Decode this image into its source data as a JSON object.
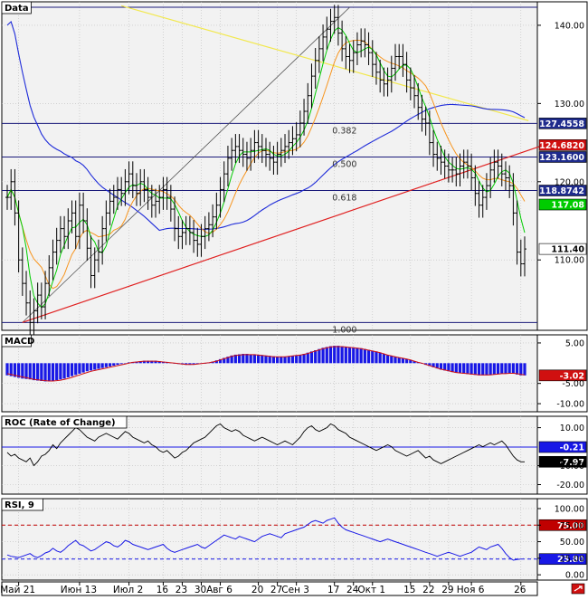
{
  "colors": {
    "panel_bg": "#f2f2f2",
    "grid": "#bdbdbd",
    "candle": "#000000",
    "sma_green": "#00cc00",
    "sma_orange": "#f7941d",
    "sma_blue": "#1e2bd9",
    "sma_yellow": "#f2e84e",
    "trend_red": "#e02020",
    "fib_line": "#1a1a7a",
    "macd_hist": "#1818e6",
    "macd_signal": "#d01010",
    "roc_line": "#000000",
    "rsi_line": "#1818e6",
    "rsi_overbought": "#c00000"
  },
  "toolbar": {
    "resize_icon": "resize-icon"
  },
  "x_axis": {
    "labels": [
      {
        "text": "Май 21",
        "i": 3
      },
      {
        "text": "Июн 13",
        "i": 19
      },
      {
        "text": "Июл 2",
        "i": 32
      },
      {
        "text": "16",
        "i": 41
      },
      {
        "text": "23",
        "i": 46
      },
      {
        "text": "30",
        "i": 51
      },
      {
        "text": "Авг 6",
        "i": 56
      },
      {
        "text": "20",
        "i": 66
      },
      {
        "text": "27",
        "i": 71
      },
      {
        "text": "Сен 3",
        "i": 76
      },
      {
        "text": "17",
        "i": 86
      },
      {
        "text": "24",
        "i": 91
      },
      {
        "text": "Окт 1",
        "i": 96
      },
      {
        "text": "15",
        "i": 106
      },
      {
        "text": "22",
        "i": 111
      },
      {
        "text": "29",
        "i": 116
      },
      {
        "text": "Ноя 6",
        "i": 122
      },
      {
        "text": "26",
        "i": 135
      }
    ]
  },
  "chart_data": [
    {
      "type": "line",
      "title": "Data",
      "ylim": [
        101,
        143
      ],
      "y_ticks": [
        "140.00",
        "130.00",
        "120.00",
        "110.00"
      ],
      "y_tick_values": [
        140,
        130,
        120,
        110
      ],
      "series_style": "ohlc",
      "closes": [
        118.0,
        120.0,
        116.0,
        110.0,
        107.0,
        104.5,
        102.0,
        103.5,
        105.5,
        104.0,
        107.0,
        109.0,
        111.0,
        112.5,
        114.0,
        113.0,
        115.0,
        116.0,
        113.0,
        117.0,
        115.0,
        111.5,
        108.0,
        110.0,
        111.0,
        114.0,
        116.0,
        117.5,
        118.0,
        119.0,
        118.5,
        120.0,
        121.0,
        119.5,
        118.5,
        120.0,
        119.0,
        118.0,
        117.0,
        117.5,
        118.0,
        119.0,
        118.0,
        116.5,
        114.0,
        113.0,
        113.5,
        114.0,
        113.5,
        112.5,
        112.0,
        113.0,
        114.0,
        114.5,
        115.5,
        117.0,
        119.0,
        121.0,
        123.0,
        124.0,
        124.5,
        124.0,
        123.5,
        123.0,
        124.0,
        125.0,
        124.5,
        124.0,
        123.5,
        123.0,
        122.5,
        123.5,
        124.0,
        124.5,
        125.0,
        125.5,
        126.0,
        127.5,
        129.0,
        131.0,
        133.5,
        135.5,
        137.0,
        138.5,
        139.5,
        140.5,
        141.0,
        139.0,
        137.0,
        136.0,
        135.5,
        136.5,
        137.5,
        138.0,
        137.5,
        136.5,
        135.0,
        134.0,
        133.0,
        132.5,
        133.0,
        134.5,
        136.0,
        136.0,
        135.0,
        133.0,
        132.0,
        131.0,
        129.5,
        128.0,
        127.5,
        125.0,
        123.5,
        123.0,
        122.5,
        122.0,
        121.5,
        121.5,
        121.0,
        122.0,
        122.5,
        122.0,
        120.5,
        118.5,
        117.0,
        118.0,
        119.5,
        121.5,
        122.5,
        122.0,
        121.0,
        120.5,
        119.5,
        116.0,
        111.0,
        109.5,
        111.4
      ],
      "value_labels": [
        {
          "text": "127.4558",
          "value": 127.4558,
          "bg": "#1e2b8c",
          "fg": "#ffffff"
        },
        {
          "text": "124.6820",
          "value": 124.682,
          "bg": "#d01010",
          "fg": "#ffffff"
        },
        {
          "text": "123.1600",
          "value": 123.16,
          "bg": "#1e2b8c",
          "fg": "#ffffff"
        },
        {
          "text": "118.8742",
          "value": 118.8742,
          "bg": "#1e2b8c",
          "fg": "#ffffff"
        },
        {
          "text": "117.08",
          "value": 117.08,
          "bg": "#00cc00",
          "fg": "#ffffff"
        },
        {
          "text": "111.40",
          "value": 111.4,
          "bg": "#ffffff",
          "fg": "#000000"
        }
      ],
      "fib_levels": [
        {
          "label": "",
          "value": 142.3
        },
        {
          "label": "0.382",
          "value": 127.4558
        },
        {
          "label": "0.500",
          "value": 123.16
        },
        {
          "label": "0.618",
          "value": 118.8742
        },
        {
          "label": "1.000",
          "value": 102.0
        }
      ],
      "fib_tail_start_i": 84,
      "fib_diagonal": {
        "from": [
          4,
          102.0
        ],
        "to": [
          90,
          142.3
        ]
      },
      "trendline": {
        "from": [
          4,
          102.0
        ],
        "to": [
          141,
          124.682
        ]
      },
      "yellow_line": {
        "from": [
          30,
          142.5
        ],
        "to": [
          137,
          127.8
        ]
      }
    },
    {
      "type": "bar",
      "title": "MACD",
      "ylim": [
        -12,
        7
      ],
      "y_ticks": [
        "5.00",
        "-5.00",
        "-10.00"
      ],
      "y_tick_values": [
        5,
        -5,
        -10
      ],
      "value_labels": [
        {
          "text": "-3.02",
          "value": -3.02,
          "bg": "#d01010",
          "fg": "#ffffff"
        }
      ],
      "histogram": [
        -3.0,
        -3.2,
        -3.4,
        -3.6,
        -3.8,
        -3.9,
        -4.0,
        -4.2,
        -4.3,
        -4.4,
        -4.5,
        -4.5,
        -4.4,
        -4.2,
        -4.0,
        -3.8,
        -3.5,
        -3.2,
        -2.9,
        -2.6,
        -2.3,
        -2.0,
        -1.8,
        -1.6,
        -1.4,
        -1.2,
        -1.0,
        -0.8,
        -0.6,
        -0.4,
        -0.2,
        0.0,
        0.2,
        0.3,
        0.4,
        0.5,
        0.6,
        0.6,
        0.6,
        0.6,
        0.5,
        0.4,
        0.3,
        0.1,
        -0.1,
        -0.2,
        -0.3,
        -0.4,
        -0.4,
        -0.3,
        -0.2,
        -0.1,
        0.0,
        0.2,
        0.4,
        0.7,
        1.0,
        1.3,
        1.6,
        1.9,
        2.1,
        2.2,
        2.3,
        2.3,
        2.2,
        2.2,
        2.1,
        2.0,
        1.9,
        1.8,
        1.7,
        1.6,
        1.6,
        1.6,
        1.7,
        1.8,
        1.9,
        2.1,
        2.3,
        2.6,
        2.9,
        3.2,
        3.5,
        3.8,
        4.0,
        4.2,
        4.3,
        4.3,
        4.2,
        4.1,
        4.0,
        3.9,
        3.8,
        3.7,
        3.5,
        3.3,
        3.1,
        2.9,
        2.6,
        2.3,
        2.0,
        1.8,
        1.6,
        1.4,
        1.2,
        1.0,
        0.8,
        0.5,
        0.2,
        -0.1,
        -0.4,
        -0.7,
        -1.0,
        -1.3,
        -1.6,
        -1.8,
        -2.0,
        -2.2,
        -2.4,
        -2.5,
        -2.6,
        -2.7,
        -2.8,
        -2.9,
        -3.0,
        -3.0,
        -3.0,
        -2.9,
        -2.8,
        -2.7,
        -2.6,
        -2.6,
        -2.5,
        -2.6,
        -2.8,
        -3.0,
        -3.02
      ],
      "signal": [
        -2.6,
        -2.8,
        -3.0,
        -3.2,
        -3.4,
        -3.6,
        -3.8,
        -4.0,
        -4.1,
        -4.2,
        -4.3,
        -4.4,
        -4.4,
        -4.3,
        -4.2,
        -4.0,
        -3.8,
        -3.5,
        -3.2,
        -2.9,
        -2.6,
        -2.3,
        -2.0,
        -1.8,
        -1.6,
        -1.4,
        -1.2,
        -1.0,
        -0.8,
        -0.6,
        -0.4,
        -0.2,
        0.0,
        0.2,
        0.3,
        0.4,
        0.5,
        0.5,
        0.5,
        0.5,
        0.4,
        0.3,
        0.2,
        0.1,
        0.0,
        -0.1,
        -0.2,
        -0.3,
        -0.3,
        -0.3,
        -0.2,
        -0.1,
        0.0,
        0.1,
        0.3,
        0.5,
        0.8,
        1.1,
        1.4,
        1.7,
        1.9,
        2.0,
        2.1,
        2.1,
        2.1,
        2.1,
        2.0,
        1.9,
        1.8,
        1.7,
        1.6,
        1.6,
        1.6,
        1.6,
        1.7,
        1.8,
        1.9,
        2.0,
        2.2,
        2.4,
        2.7,
        3.0,
        3.3,
        3.6,
        3.8,
        4.0,
        4.1,
        4.1,
        4.1,
        4.0,
        3.9,
        3.8,
        3.7,
        3.6,
        3.4,
        3.2,
        3.0,
        2.8,
        2.6,
        2.3,
        2.0,
        1.8,
        1.6,
        1.4,
        1.2,
        1.0,
        0.8,
        0.5,
        0.2,
        0.0,
        -0.3,
        -0.6,
        -0.9,
        -1.2,
        -1.5,
        -1.7,
        -1.9,
        -2.1,
        -2.3,
        -2.4,
        -2.5,
        -2.6,
        -2.7,
        -2.8,
        -2.9,
        -2.9,
        -2.9,
        -2.9,
        -2.8,
        -2.7,
        -2.6,
        -2.6,
        -2.5,
        -2.5,
        -2.6,
        -2.8,
        -2.9
      ]
    },
    {
      "type": "line",
      "title": "ROC (Rate of Change)",
      "ylim": [
        -25,
        16
      ],
      "y_ticks": [
        "10.00",
        "-10.00",
        "-20.00"
      ],
      "y_tick_values": [
        10,
        -10,
        -20
      ],
      "value_labels": [
        {
          "text": "-0.21",
          "value": -0.21,
          "bg": "#1818e6",
          "fg": "#ffffff"
        },
        {
          "text": "-7.97",
          "value": -7.97,
          "bg": "#000000",
          "fg": "#ffffff"
        }
      ],
      "level_line": -0.21,
      "values": [
        -3,
        -5,
        -4,
        -6,
        -7,
        -8,
        -6,
        -10,
        -8,
        -5,
        -4,
        -2,
        1,
        -1,
        2,
        4,
        6,
        8,
        10,
        9,
        7,
        5,
        4,
        3,
        5,
        6,
        7,
        6,
        5,
        4,
        6,
        8,
        7,
        5,
        4,
        3,
        2,
        3,
        1,
        0,
        -2,
        -3,
        -2,
        -4,
        -6,
        -5,
        -3,
        -2,
        0,
        2,
        3,
        4,
        5,
        7,
        9,
        11,
        12,
        10,
        9,
        8,
        9,
        8,
        6,
        5,
        4,
        3,
        4,
        5,
        4,
        3,
        2,
        1,
        2,
        3,
        2,
        1,
        3,
        5,
        8,
        10,
        11,
        9,
        8,
        9,
        10,
        12,
        11,
        9,
        8,
        7,
        5,
        4,
        3,
        2,
        1,
        0,
        -1,
        -2,
        -1,
        0,
        1,
        0,
        -2,
        -3,
        -4,
        -5,
        -4,
        -3,
        -2,
        -4,
        -6,
        -5,
        -7,
        -8,
        -9,
        -8,
        -7,
        -6,
        -5,
        -4,
        -3,
        -2,
        -1,
        0,
        1,
        0,
        1,
        2,
        1,
        2,
        3,
        1,
        -2,
        -5,
        -7,
        -8,
        -7.97
      ]
    },
    {
      "type": "line",
      "title": "RSI, 9",
      "ylim": [
        -8,
        115
      ],
      "y_ticks": [
        "100.00",
        "75.00",
        "50.00",
        "25.00",
        "0.00"
      ],
      "y_tick_values": [
        100,
        75,
        50,
        25,
        0
      ],
      "value_labels": [
        {
          "text": "75.00",
          "value": 75,
          "bg": "#c00000",
          "fg": "#ffffff"
        },
        {
          "text": "23.80",
          "value": 23.8,
          "bg": "#1818e6",
          "fg": "#ffffff"
        }
      ],
      "overbought": 75,
      "oversold": 23.8,
      "values": [
        30,
        28,
        27,
        26,
        28,
        30,
        32,
        28,
        26,
        29,
        33,
        35,
        40,
        36,
        34,
        38,
        44,
        48,
        52,
        46,
        44,
        40,
        36,
        38,
        42,
        46,
        50,
        48,
        44,
        42,
        46,
        52,
        50,
        46,
        44,
        42,
        40,
        38,
        40,
        42,
        44,
        46,
        40,
        36,
        34,
        36,
        38,
        40,
        42,
        44,
        46,
        42,
        40,
        44,
        48,
        52,
        56,
        60,
        58,
        56,
        54,
        58,
        56,
        54,
        52,
        50,
        54,
        58,
        60,
        62,
        60,
        58,
        56,
        62,
        64,
        66,
        68,
        70,
        72,
        76,
        80,
        82,
        80,
        78,
        82,
        84,
        86,
        78,
        72,
        68,
        66,
        64,
        62,
        60,
        58,
        56,
        54,
        52,
        50,
        52,
        54,
        52,
        50,
        48,
        46,
        44,
        42,
        40,
        38,
        36,
        34,
        32,
        30,
        28,
        30,
        32,
        34,
        32,
        30,
        28,
        30,
        32,
        34,
        38,
        42,
        40,
        38,
        42,
        44,
        46,
        40,
        32,
        26,
        22,
        23,
        23.8
      ]
    }
  ]
}
